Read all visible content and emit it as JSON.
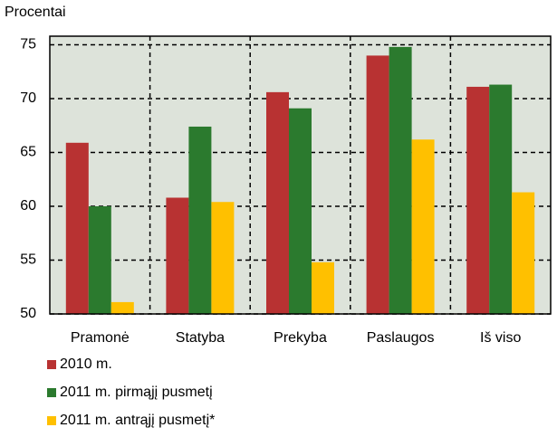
{
  "chart_data": {
    "type": "bar",
    "y_axis_label": "Procentai",
    "categories": [
      "Pramonė",
      "Statyba",
      "Prekyba",
      "Paslaugos",
      "Iš viso"
    ],
    "series": [
      {
        "name": "2010 m.",
        "color": "#b83232",
        "values": [
          65.9,
          60.8,
          70.6,
          74.0,
          71.1
        ]
      },
      {
        "name": "2011 m. pirmąjį pusmetį",
        "color": "#2b7a2e",
        "values": [
          60.0,
          67.4,
          69.1,
          74.8,
          71.3
        ]
      },
      {
        "name": "2011 m. antrąjį pusmetį*",
        "color": "#ffc000",
        "values": [
          51.1,
          60.4,
          54.8,
          66.2,
          61.3
        ]
      }
    ],
    "ylim": [
      50,
      75.8
    ],
    "yticks": [
      50,
      55,
      60,
      65,
      70,
      75
    ],
    "grid": true
  }
}
